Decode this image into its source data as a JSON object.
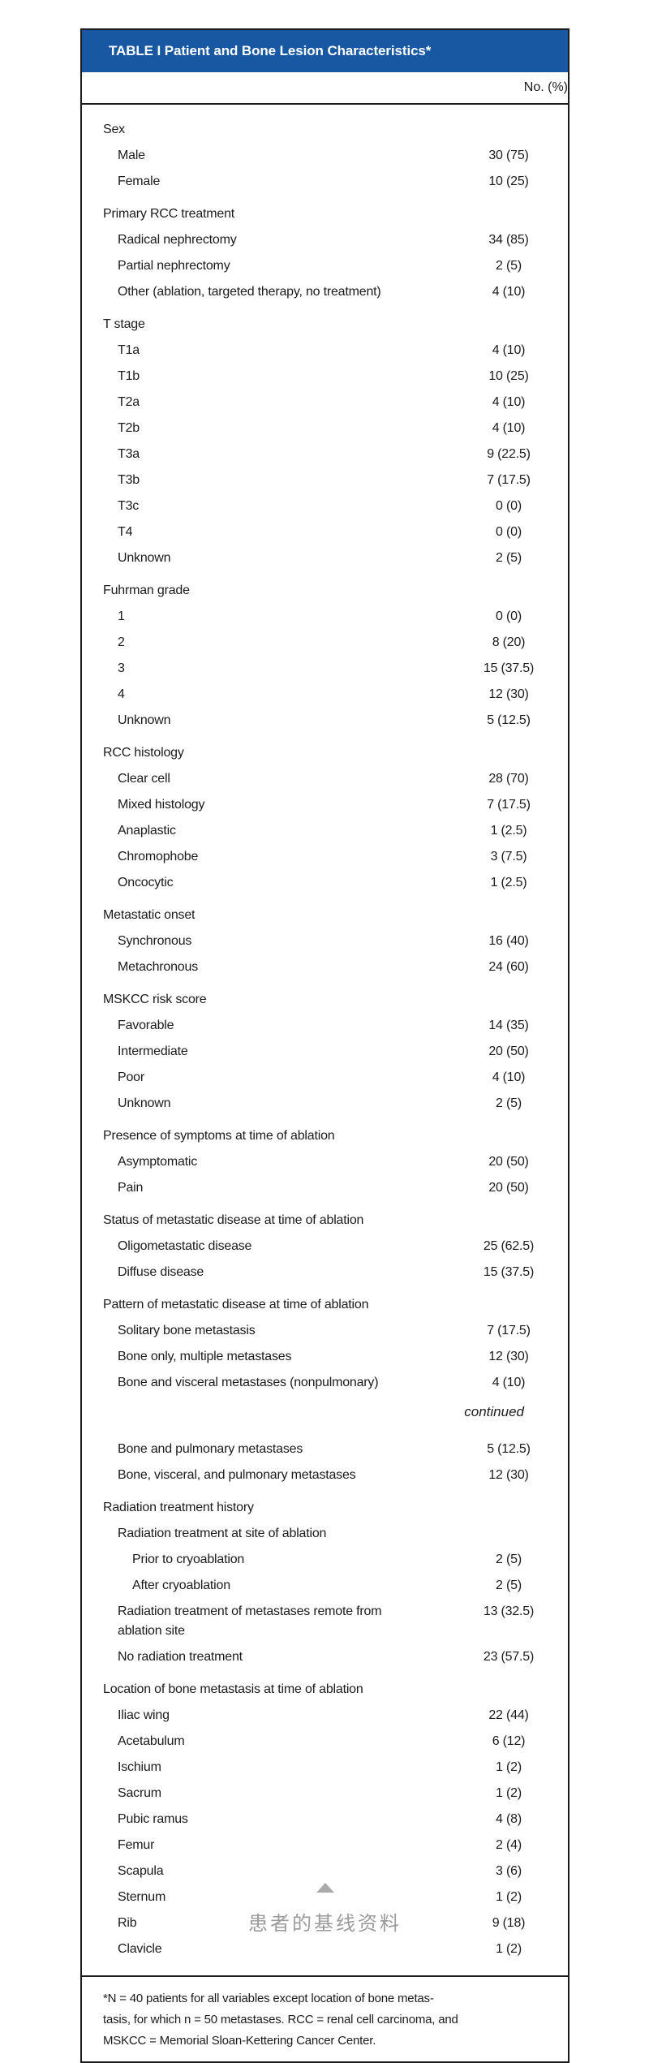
{
  "table": {
    "title": "TABLE I Patient and Bone Lesion Characteristics*",
    "column_header": "No. (%)",
    "rows": [
      {
        "t": "cat",
        "label": "Sex",
        "value": ""
      },
      {
        "t": "item",
        "label": "Male",
        "value": "30 (75)"
      },
      {
        "t": "item",
        "label": "Female",
        "value": "10 (25)"
      },
      {
        "t": "cat",
        "label": "Primary RCC treatment",
        "value": ""
      },
      {
        "t": "item",
        "label": "Radical nephrectomy",
        "value": "34 (85)"
      },
      {
        "t": "item",
        "label": "Partial nephrectomy",
        "value": "2 (5)"
      },
      {
        "t": "item",
        "label": "Other (ablation, targeted therapy, no treatment)",
        "value": "4 (10)"
      },
      {
        "t": "cat",
        "label": "T stage",
        "value": ""
      },
      {
        "t": "item",
        "label": "T1a",
        "value": "4 (10)"
      },
      {
        "t": "item",
        "label": "T1b",
        "value": "10 (25)"
      },
      {
        "t": "item",
        "label": "T2a",
        "value": "4 (10)"
      },
      {
        "t": "item",
        "label": "T2b",
        "value": "4 (10)"
      },
      {
        "t": "item",
        "label": "T3a",
        "value": "9 (22.5)"
      },
      {
        "t": "item",
        "label": "T3b",
        "value": "7 (17.5)"
      },
      {
        "t": "item",
        "label": "T3c",
        "value": "0 (0)"
      },
      {
        "t": "item",
        "label": "T4",
        "value": "0 (0)"
      },
      {
        "t": "item",
        "label": "Unknown",
        "value": "2 (5)"
      },
      {
        "t": "cat",
        "label": "Fuhrman grade",
        "value": ""
      },
      {
        "t": "item",
        "label": "1",
        "value": "0 (0)"
      },
      {
        "t": "item",
        "label": "2",
        "value": "8 (20)"
      },
      {
        "t": "item",
        "label": "3",
        "value": "15 (37.5)"
      },
      {
        "t": "item",
        "label": "4",
        "value": "12 (30)"
      },
      {
        "t": "item",
        "label": "Unknown",
        "value": "5 (12.5)"
      },
      {
        "t": "cat",
        "label": "RCC histology",
        "value": ""
      },
      {
        "t": "item",
        "label": "Clear cell",
        "value": "28 (70)"
      },
      {
        "t": "item",
        "label": "Mixed histology",
        "value": "7 (17.5)"
      },
      {
        "t": "item",
        "label": "Anaplastic",
        "value": "1 (2.5)"
      },
      {
        "t": "item",
        "label": "Chromophobe",
        "value": "3 (7.5)"
      },
      {
        "t": "item",
        "label": "Oncocytic",
        "value": "1 (2.5)"
      },
      {
        "t": "cat",
        "label": "Metastatic onset",
        "value": ""
      },
      {
        "t": "item",
        "label": "Synchronous",
        "value": "16 (40)"
      },
      {
        "t": "item",
        "label": "Metachronous",
        "value": "24 (60)"
      },
      {
        "t": "cat",
        "label": "MSKCC risk score",
        "value": ""
      },
      {
        "t": "item",
        "label": "Favorable",
        "value": "14 (35)"
      },
      {
        "t": "item",
        "label": "Intermediate",
        "value": "20 (50)"
      },
      {
        "t": "item",
        "label": "Poor",
        "value": "4 (10)"
      },
      {
        "t": "item",
        "label": "Unknown",
        "value": "2 (5)"
      },
      {
        "t": "cat",
        "label": "Presence of symptoms at time of ablation",
        "value": ""
      },
      {
        "t": "item",
        "label": "Asymptomatic",
        "value": "20 (50)"
      },
      {
        "t": "item",
        "label": "Pain",
        "value": "20 (50)"
      },
      {
        "t": "cat",
        "label": "Status of metastatic disease at time of ablation",
        "value": ""
      },
      {
        "t": "item",
        "label": "Oligometastatic disease",
        "value": "25 (62.5)"
      },
      {
        "t": "item",
        "label": "Diffuse disease",
        "value": "15 (37.5)"
      },
      {
        "t": "cat",
        "label": "Pattern of metastatic disease at time of ablation",
        "value": ""
      },
      {
        "t": "item",
        "label": "Solitary bone metastasis",
        "value": "7 (17.5)"
      },
      {
        "t": "item",
        "label": "Bone only, multiple metastases",
        "value": "12 (30)"
      },
      {
        "t": "item",
        "label": "Bone and visceral metastases (nonpulmonary)",
        "value": "4 (10)"
      },
      {
        "t": "cont",
        "label": "continued",
        "value": ""
      },
      {
        "t": "item",
        "label": "Bone and pulmonary metastases",
        "value": "5 (12.5)"
      },
      {
        "t": "item",
        "label": "Bone, visceral, and pulmonary metastases",
        "value": "12 (30)"
      },
      {
        "t": "cat",
        "label": "Radiation treatment history",
        "value": ""
      },
      {
        "t": "item",
        "label": "Radiation treatment at site of ablation",
        "value": ""
      },
      {
        "t": "sub2",
        "label": "Prior to cryoablation",
        "value": "2 (5)"
      },
      {
        "t": "sub2",
        "label": "After cryoablation",
        "value": "2 (5)"
      },
      {
        "t": "item",
        "label": "Radiation treatment of metastases remote from\nablation site",
        "value": "13 (32.5)"
      },
      {
        "t": "item",
        "label": "No radiation treatment",
        "value": "23 (57.5)"
      },
      {
        "t": "cat",
        "label": "Location of bone metastasis at time of ablation",
        "value": ""
      },
      {
        "t": "item",
        "label": "Iliac wing",
        "value": "22 (44)"
      },
      {
        "t": "item",
        "label": "Acetabulum",
        "value": "6 (12)"
      },
      {
        "t": "item",
        "label": "Ischium",
        "value": "1 (2)"
      },
      {
        "t": "item",
        "label": "Sacrum",
        "value": "1 (2)"
      },
      {
        "t": "item",
        "label": "Pubic ramus",
        "value": "4 (8)"
      },
      {
        "t": "item",
        "label": "Femur",
        "value": "2 (4)"
      },
      {
        "t": "item",
        "label": "Scapula",
        "value": "3 (6)"
      },
      {
        "t": "item",
        "label": "Sternum",
        "value": "1 (2)"
      },
      {
        "t": "item",
        "label": "Rib",
        "value": "9 (18)"
      },
      {
        "t": "item",
        "label": "Clavicle",
        "value": "1 (2)"
      }
    ],
    "footnote": "*N = 40 patients for all variables except location of bone metas-\ntasis, for which n = 50 metastases. RCC = renal cell carcinoma, and\nMSKCC = Memorial Sloan-Kettering Cancer Center."
  },
  "caption": {
    "marker": "up-triangle",
    "text": "患者的基线资料"
  },
  "colors": {
    "header_blue": "#1857a2",
    "caption_gray": "#9b9b9b",
    "border_black": "#1b1b1b"
  }
}
